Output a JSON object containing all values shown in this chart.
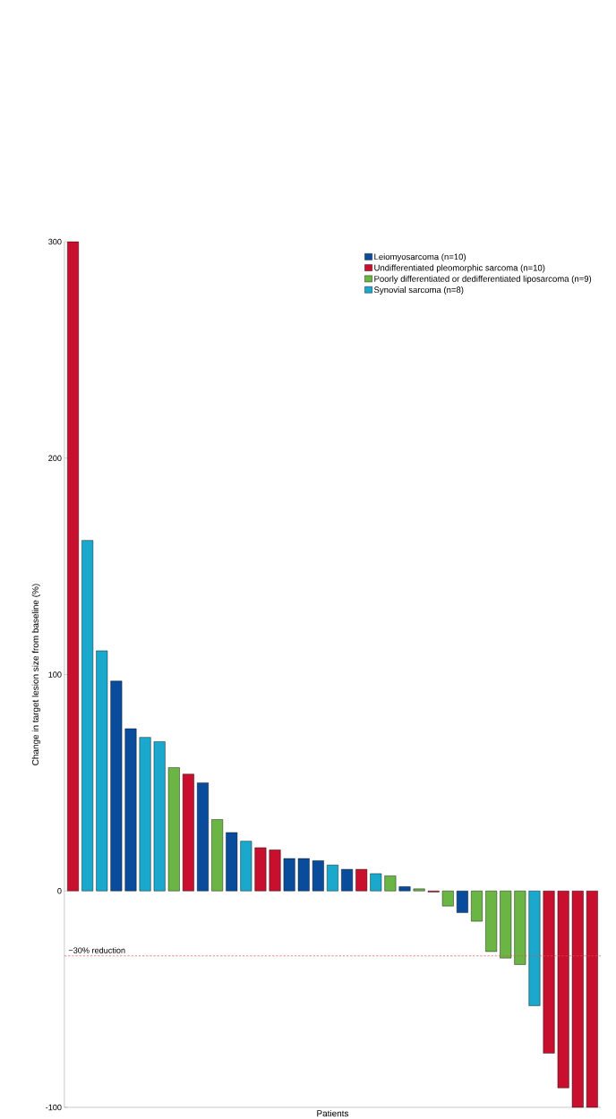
{
  "chart_data": {
    "type": "bar",
    "xlabel": "Patients",
    "ylabel": "Change in target lesion size from baseline (%)",
    "categories": [
      null,
      null,
      null,
      null,
      null,
      null,
      null,
      null,
      null,
      null,
      null,
      null,
      null,
      null,
      null,
      null,
      null,
      null,
      null,
      null,
      null,
      null,
      null,
      null,
      null,
      null,
      null,
      null,
      null,
      null,
      null,
      null,
      null,
      null,
      null,
      null,
      null
    ],
    "series": [
      {
        "name": "Leiomyosarcoma (n=10)",
        "color": "#0a4c9c",
        "values": [
          null,
          null,
          null,
          97,
          75,
          null,
          null,
          null,
          null,
          50,
          null,
          27,
          null,
          null,
          null,
          15,
          15,
          14,
          null,
          10,
          null,
          null,
          null,
          2,
          null,
          null,
          null,
          -10,
          null,
          null,
          null,
          null,
          null,
          null,
          null,
          null,
          null
        ]
      },
      {
        "name": "Undifferentiated pleomorphic sarcoma (n=10)",
        "color": "#c8102e",
        "values": [
          300,
          null,
          null,
          null,
          null,
          null,
          null,
          null,
          54,
          null,
          null,
          null,
          null,
          20,
          19,
          null,
          null,
          null,
          null,
          null,
          10,
          null,
          null,
          null,
          null,
          -0.5,
          null,
          null,
          null,
          null,
          null,
          null,
          null,
          -75,
          -91,
          -100,
          -100
        ]
      },
      {
        "name": "Poorly differentiated or dedifferentiated liposarcoma (n=9)",
        "color": "#6ab544",
        "values": [
          null,
          null,
          null,
          null,
          null,
          null,
          null,
          57,
          null,
          null,
          33,
          null,
          null,
          null,
          null,
          null,
          null,
          null,
          null,
          null,
          null,
          null,
          7,
          null,
          1,
          null,
          -7,
          null,
          -14,
          -28,
          -31,
          -34,
          null,
          null,
          null,
          null,
          null
        ]
      },
      {
        "name": "Synovial sarcoma (n=8)",
        "color": "#1aa9cc",
        "values": [
          null,
          162,
          111,
          null,
          null,
          71,
          69,
          null,
          null,
          null,
          null,
          null,
          23,
          null,
          null,
          null,
          null,
          null,
          12,
          null,
          null,
          8,
          null,
          null,
          null,
          null,
          null,
          null,
          null,
          null,
          null,
          null,
          -53,
          null,
          null,
          null,
          null
        ]
      }
    ],
    "ylim": [
      -100,
      300
    ],
    "yticks": [
      -100,
      0,
      100,
      200,
      300
    ],
    "ref_lines": [
      {
        "axis": "y",
        "value": -30,
        "label": "−30% reduction",
        "color": "#d9534f",
        "line_style": "dashed"
      }
    ],
    "legend": "top right",
    "grid": false
  }
}
